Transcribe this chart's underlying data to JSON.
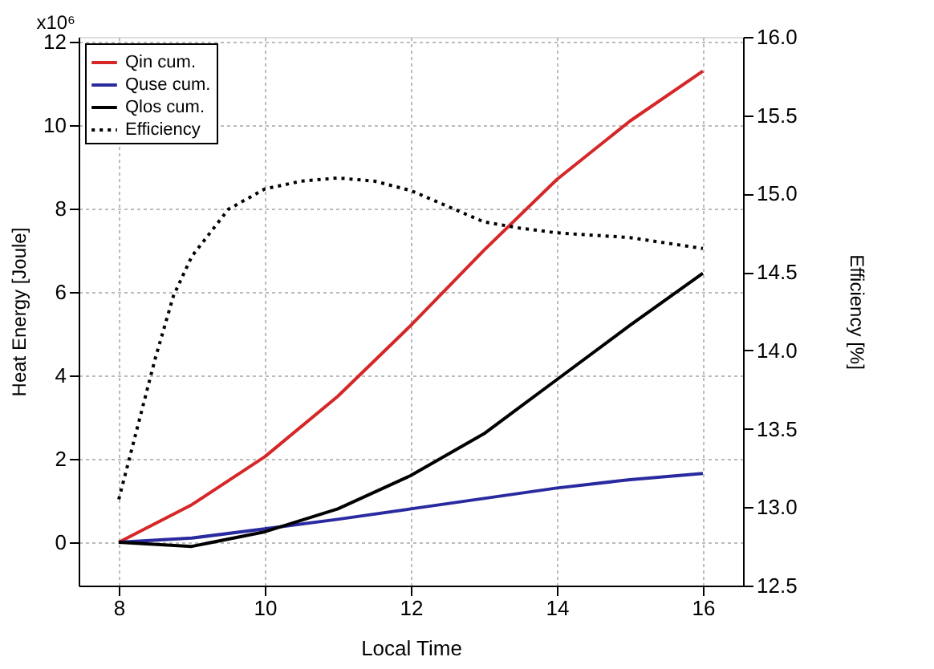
{
  "chart_data": {
    "type": "line",
    "xlabel": "Local Time",
    "ylabel": "Heat Energy [Joule]",
    "y2label": "Efficiency [%]",
    "xlim": [
      7.45,
      16.55
    ],
    "xticks": [
      8,
      10,
      12,
      14,
      16
    ],
    "ylim": [
      -1.04,
      12.12
    ],
    "yticks": [
      0,
      2,
      4,
      6,
      8,
      10,
      12
    ],
    "annotations": [
      "x10⁶"
    ],
    "y2lim": [
      12.5,
      16.0
    ],
    "y2ticks": [
      {
        "value": 12.5,
        "label": "12.5"
      },
      {
        "value": 13.0,
        "label": "13.0"
      },
      {
        "value": 13.5,
        "label": "13.5"
      },
      {
        "value": 14.0,
        "label": "14.0"
      },
      {
        "value": 14.5,
        "label": "14.5"
      },
      {
        "value": 15.0,
        "label": "15.0"
      },
      {
        "value": 15.5,
        "label": "15.5"
      },
      {
        "value": 16.0,
        "label": "16.0"
      }
    ],
    "grid": true,
    "legend": "top left",
    "marker": "none",
    "series": [
      {
        "name": "Qin cum.",
        "color": "#d62728",
        "line_style": "solid",
        "x": [
          8,
          9,
          10,
          11,
          12,
          13,
          14,
          15,
          16
        ],
        "values": [
          0,
          0.9,
          2.05,
          3.5,
          5.2,
          7.0,
          8.7,
          10.1,
          11.3
        ]
      },
      {
        "name": "Quse cum.",
        "color": "#2a2aa0",
        "line_style": "solid",
        "x": [
          8,
          9,
          10,
          11,
          12,
          13,
          14,
          15,
          16
        ],
        "values": [
          0,
          0.1,
          0.32,
          0.55,
          0.8,
          1.05,
          1.3,
          1.5,
          1.65
        ]
      },
      {
        "name": "Qlos cum.",
        "color": "#000000",
        "line_style": "solid",
        "x": [
          8,
          9,
          10,
          11,
          12,
          13,
          14,
          15,
          16
        ],
        "values": [
          0,
          -0.1,
          0.25,
          0.8,
          1.6,
          2.6,
          3.9,
          5.2,
          6.45
        ]
      },
      {
        "name": "Efficiency",
        "color": "#000000",
        "line_style": "dotted",
        "axis": "y2",
        "x": [
          8,
          8.25,
          8.5,
          8.75,
          9,
          9.5,
          10,
          10.5,
          11,
          11.5,
          12,
          12.5,
          13,
          13.5,
          14,
          15,
          16
        ],
        "values": [
          13.05,
          13.5,
          13.95,
          14.35,
          14.6,
          14.9,
          15.03,
          15.08,
          15.1,
          15.08,
          15.02,
          14.92,
          14.82,
          14.78,
          14.75,
          14.72,
          14.65
        ]
      }
    ]
  }
}
